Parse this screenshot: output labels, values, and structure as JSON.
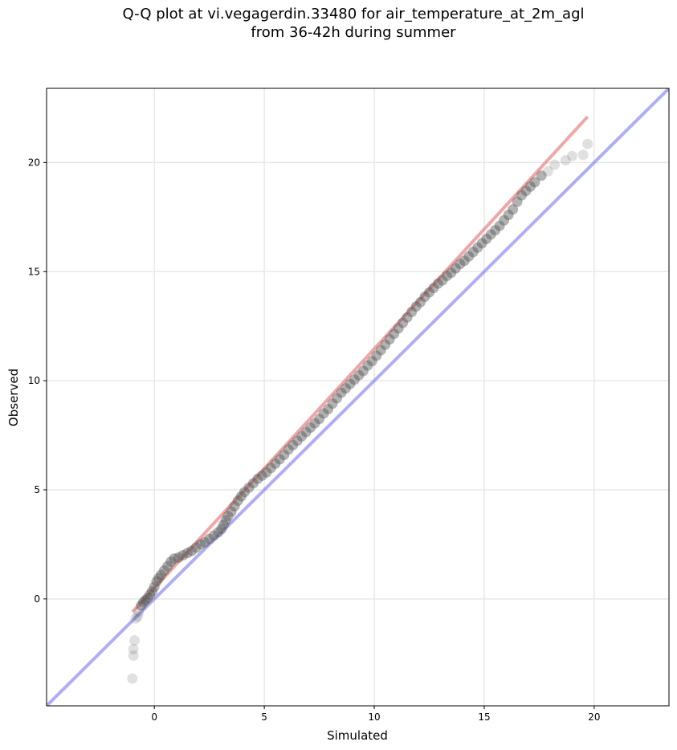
{
  "chart_data": {
    "type": "scatter",
    "title": "Q-Q plot at vi.vegagerdin.33480 for air_temperature_at_2m_agl",
    "subtitle": "from 36-42h during summer",
    "xlabel": "Simulated",
    "ylabel": "Observed",
    "xlim": [
      -4.9,
      23.4
    ],
    "ylim": [
      -4.9,
      23.4
    ],
    "xticks": [
      "0",
      "5",
      "10",
      "15",
      "20"
    ],
    "yticks": [
      "0",
      "5",
      "10",
      "15",
      "20"
    ],
    "xtick_values": [
      0,
      5,
      10,
      15,
      20
    ],
    "ytick_values": [
      0,
      5,
      10,
      15,
      20
    ],
    "grid": true,
    "colors": {
      "points": "#555555",
      "fit_line": "#e86a6a",
      "identity_line": "#6b6bee",
      "grid": "#e8e8e8"
    },
    "series": [
      {
        "type": "scatter",
        "x": [
          -1.0,
          -0.95,
          -0.95,
          -0.9,
          -0.85,
          -0.75,
          -0.7,
          -0.6,
          -0.5,
          -0.4,
          -0.3,
          -0.2,
          -0.1,
          0.0,
          0.1,
          0.2,
          0.3,
          0.45,
          0.6,
          0.75,
          0.9,
          1.1,
          1.3,
          1.5,
          1.7,
          1.9,
          2.1,
          2.3,
          2.5,
          2.7,
          2.9,
          3.05,
          3.15,
          3.25,
          3.35,
          3.5,
          3.65,
          3.8,
          3.95,
          4.1,
          4.3,
          4.5,
          4.7,
          4.9,
          5.1,
          5.3,
          5.5,
          5.7,
          5.9,
          6.1,
          6.3,
          6.5,
          6.7,
          6.9,
          7.1,
          7.3,
          7.5,
          7.7,
          7.9,
          8.1,
          8.3,
          8.5,
          8.7,
          8.9,
          9.1,
          9.3,
          9.5,
          9.7,
          9.9,
          10.1,
          10.3,
          10.5,
          10.7,
          10.9,
          11.1,
          11.3,
          11.5,
          11.7,
          11.9,
          12.1,
          12.3,
          12.5,
          12.7,
          12.9,
          13.1,
          13.3,
          13.5,
          13.7,
          13.9,
          14.1,
          14.3,
          14.5,
          14.7,
          14.9,
          15.1,
          15.3,
          15.5,
          15.7,
          15.9,
          16.1,
          16.3,
          16.5,
          16.7,
          16.9,
          17.1,
          17.3,
          17.6,
          17.9,
          18.2,
          18.7,
          19.0,
          19.5,
          19.7
        ],
        "y": [
          -3.65,
          -2.6,
          -2.3,
          -1.9,
          -0.9,
          -0.8,
          -0.6,
          -0.3,
          -0.15,
          -0.05,
          0.05,
          0.2,
          0.35,
          0.55,
          0.8,
          0.95,
          1.1,
          1.3,
          1.5,
          1.7,
          1.85,
          1.9,
          2.0,
          2.1,
          2.2,
          2.35,
          2.5,
          2.6,
          2.75,
          2.9,
          3.05,
          3.2,
          3.4,
          3.6,
          3.8,
          4.0,
          4.25,
          4.5,
          4.7,
          4.9,
          5.1,
          5.3,
          5.5,
          5.65,
          5.8,
          6.0,
          6.2,
          6.4,
          6.6,
          6.85,
          7.05,
          7.25,
          7.45,
          7.65,
          7.85,
          8.05,
          8.25,
          8.5,
          8.7,
          8.95,
          9.2,
          9.45,
          9.65,
          9.85,
          10.05,
          10.25,
          10.45,
          10.7,
          10.9,
          11.15,
          11.4,
          11.65,
          11.9,
          12.15,
          12.4,
          12.65,
          12.9,
          13.15,
          13.4,
          13.6,
          13.85,
          14.05,
          14.25,
          14.45,
          14.6,
          14.8,
          14.95,
          15.15,
          15.35,
          15.5,
          15.7,
          15.9,
          16.1,
          16.3,
          16.5,
          16.7,
          16.9,
          17.1,
          17.35,
          17.6,
          17.85,
          18.2,
          18.5,
          18.7,
          18.9,
          19.1,
          19.4,
          19.6,
          19.9,
          20.1,
          20.3,
          20.35,
          20.85
        ]
      },
      {
        "type": "line",
        "x": [
          -1.0,
          19.7
        ],
        "y": [
          -0.6,
          22.1
        ]
      },
      {
        "type": "line",
        "x": [
          -4.9,
          23.4
        ],
        "y": [
          -4.9,
          23.4
        ]
      }
    ]
  }
}
